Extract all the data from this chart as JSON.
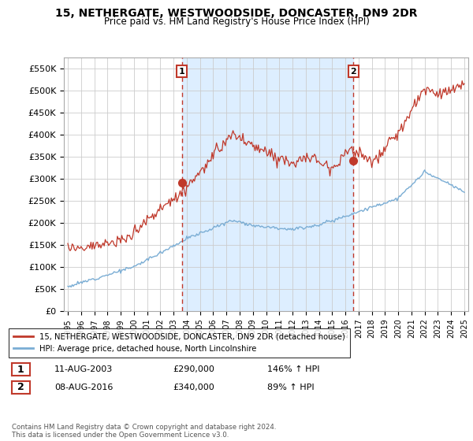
{
  "title": "15, NETHERGATE, WESTWOODSIDE, DONCASTER, DN9 2DR",
  "subtitle": "Price paid vs. HM Land Registry's House Price Index (HPI)",
  "ylim": [
    0,
    575000
  ],
  "yticks": [
    0,
    50000,
    100000,
    150000,
    200000,
    250000,
    300000,
    350000,
    400000,
    450000,
    500000,
    550000
  ],
  "ytick_labels": [
    "£0",
    "£50K",
    "£100K",
    "£150K",
    "£200K",
    "£250K",
    "£300K",
    "£350K",
    "£400K",
    "£450K",
    "£500K",
    "£550K"
  ],
  "hpi_color": "#7aadd4",
  "price_color": "#c0392b",
  "vline_color": "#c0392b",
  "shade_color": "#ddeeff",
  "background_color": "#ffffff",
  "grid_color": "#cccccc",
  "legend_label_red": "15, NETHERGATE, WESTWOODSIDE, DONCASTER, DN9 2DR (detached house)",
  "legend_label_blue": "HPI: Average price, detached house, North Lincolnshire",
  "point1_label": "1",
  "point2_label": "2",
  "point1_date": "11-AUG-2003",
  "point1_price": "£290,000",
  "point1_hpi": "146% ↑ HPI",
  "point2_date": "08-AUG-2016",
  "point2_price": "£340,000",
  "point2_hpi": "89% ↑ HPI",
  "footer": "Contains HM Land Registry data © Crown copyright and database right 2024.\nThis data is licensed under the Open Government Licence v3.0.",
  "point1_x": 2003.62,
  "point1_y": 290000,
  "point2_x": 2016.62,
  "point2_y": 340000,
  "xlim_left": 1994.7,
  "xlim_right": 2025.3
}
